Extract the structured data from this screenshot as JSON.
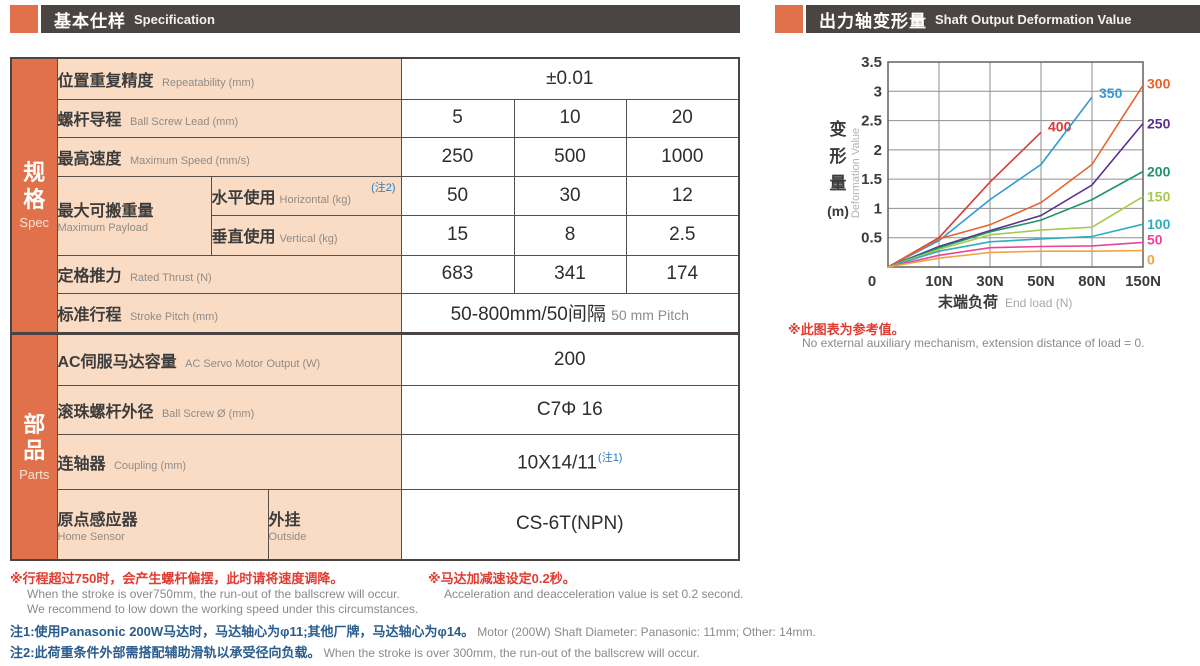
{
  "headers": {
    "left": {
      "zh": "基本仕样",
      "en": "Specification"
    },
    "right": {
      "zh": "出力轴变形量",
      "en": "Shaft Output Deformation Value"
    }
  },
  "colors": {
    "accent_orange": "#e0714a",
    "header_bar": "#4a4442",
    "label_peach": "#fadcc4",
    "note_red": "#e23b31",
    "note_blue": "#2a5d8f",
    "sup_blue": "#2e7cc0"
  },
  "table": {
    "side_spec": {
      "zh": "规格",
      "en": "Spec"
    },
    "side_parts": {
      "zh": "部品",
      "en": "Parts"
    },
    "rows": {
      "repeatability": {
        "zh": "位置重复精度",
        "en": "Repeatability (mm)",
        "value": "±0.01"
      },
      "lead": {
        "zh": "螺杆导程",
        "en": "Ball Screw Lead (mm)",
        "values": [
          "5",
          "10",
          "20"
        ]
      },
      "speed": {
        "zh": "最高速度",
        "en": "Maximum Speed (mm/s)",
        "values": [
          "250",
          "500",
          "1000"
        ]
      },
      "payload": {
        "zh": "最大可搬重量",
        "en": "Maximum Payload",
        "horizontal": {
          "zh": "水平使用",
          "en": "Horizontal (kg)",
          "note": "(注2)",
          "values": [
            "50",
            "30",
            "12"
          ]
        },
        "vertical": {
          "zh": "垂直使用",
          "en": "Vertical (kg)",
          "values": [
            "15",
            "8",
            "2.5"
          ]
        }
      },
      "thrust": {
        "zh": "定格推力",
        "en": "Rated Thrust (N)",
        "values": [
          "683",
          "341",
          "174"
        ]
      },
      "stroke": {
        "zh": "标准行程",
        "en": "Stroke Pitch (mm)",
        "value_zh": "50-800mm/50间隔",
        "value_en": "50 mm Pitch"
      },
      "motor": {
        "zh": "AC伺服马达容量",
        "en": "AC Servo Motor Output (W)",
        "value": "200"
      },
      "screw": {
        "zh": "滚珠螺杆外径",
        "en": "Ball Screw Ø (mm)",
        "value": "C7Φ 16"
      },
      "coupling": {
        "zh": "连轴器",
        "en": "Coupling (mm)",
        "value": "10X14/11",
        "note": "(注1)"
      },
      "sensor": {
        "zh": "原点感应器",
        "en": "Home Sensor",
        "sub_zh": "外挂",
        "sub_en": "Outside",
        "value": "CS-6T(NPN)"
      }
    }
  },
  "footnotes": {
    "note_a_zh": "※行程超过750时，会产生螺杆偏摆，此时请将速度调降。",
    "note_a_en1": "When the stroke is over750mm, the run-out of the ballscrew will occur.",
    "note_a_en2": "We recommend to low down the working speed under this circumstances.",
    "note_b_zh": "※马达加减速设定0.2秒。",
    "note_b_en": "Acceleration and deacceleration value is set 0.2 second.",
    "note1_zh": "注1:使用Panasonic 200W马达时，马达轴心为φ11;其他厂牌，马达轴心为φ14。",
    "note1_en": "Motor (200W) Shaft Diameter: Panasonic: 11mm; Other: 14mm.",
    "note2_zh": "注2:此荷重条件外部需搭配辅助滑轨以承受径向负载。",
    "note2_en": "When the stroke is over 300mm, the run-out of the ballscrew will occur.",
    "chart_note_zh": "※此图表为参考值。",
    "chart_note_en": "No external auxiliary mechanism, extension distance of load = 0."
  },
  "chart_data": {
    "type": "line",
    "title_zh": "出力轴变形量",
    "title_en": "Shaft Output Deformation Value",
    "xlabel_zh": "末端负荷",
    "xlabel_en": "End load (N)",
    "ylabel_zh": "变形量",
    "ylabel_unit": "(m)",
    "ylabel_en": "Deformation Value",
    "x_categories": [
      "0",
      "10N",
      "30N",
      "50N",
      "80N",
      "150N"
    ],
    "y_ticks": [
      "3.5",
      "3",
      "2.5",
      "2",
      "1.5",
      "1",
      "0.5"
    ],
    "ylim": [
      0,
      3.5
    ],
    "grid": true,
    "legend_position": "line-end-labels",
    "series": [
      {
        "name": "400",
        "color": "#d63c38",
        "values": [
          0,
          0.5,
          1.45,
          2.3,
          null,
          null
        ],
        "label_dx": 2,
        "label_dy": -6
      },
      {
        "name": "350",
        "color": "#3399d6",
        "values": [
          0,
          0.45,
          1.15,
          1.75,
          2.9,
          null
        ],
        "label_dx": 2,
        "label_dy": -4
      },
      {
        "name": "300",
        "color": "#e8622d",
        "values": [
          0,
          0.48,
          0.72,
          1.1,
          1.75,
          3.1
        ],
        "label_dx": 0,
        "label_dy": -2
      },
      {
        "name": "250",
        "color": "#5c2f91",
        "values": [
          0,
          0.35,
          0.62,
          0.88,
          1.4,
          2.45
        ],
        "label_dx": 0,
        "label_dy": 0
      },
      {
        "name": "200",
        "color": "#1f9468",
        "values": [
          0,
          0.33,
          0.6,
          0.8,
          1.15,
          1.63
        ],
        "label_dx": 0,
        "label_dy": 0
      },
      {
        "name": "150",
        "color": "#a6c94e",
        "values": [
          0,
          0.3,
          0.55,
          0.63,
          0.68,
          1.2
        ],
        "label_dx": 0,
        "label_dy": 0
      },
      {
        "name": "100",
        "color": "#2fadbd",
        "values": [
          0,
          0.27,
          0.43,
          0.48,
          0.52,
          0.73
        ],
        "label_dx": 0,
        "label_dy": 0
      },
      {
        "name": "50",
        "color": "#e8459a",
        "values": [
          0,
          0.2,
          0.33,
          0.35,
          0.36,
          0.42
        ],
        "label_dx": 0,
        "label_dy": -3
      },
      {
        "name": "0",
        "color": "#f2a445",
        "values": [
          0,
          0.15,
          0.25,
          0.27,
          0.27,
          0.28
        ],
        "label_dx": 0,
        "label_dy": 9
      }
    ]
  }
}
